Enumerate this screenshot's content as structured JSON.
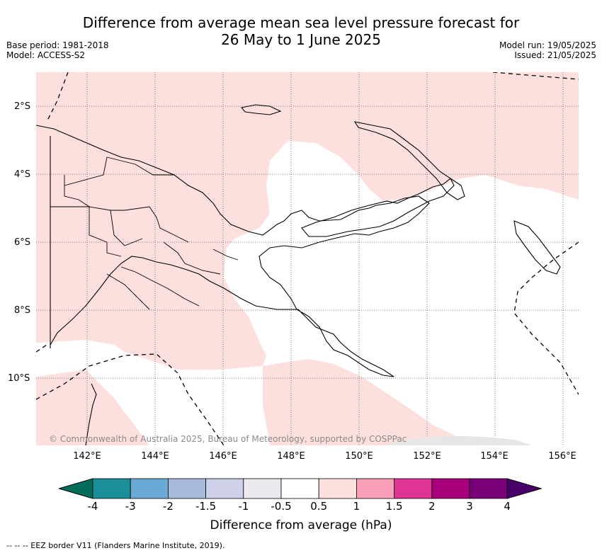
{
  "title_line1": "Difference from average mean sea level pressure forecast for",
  "title_line2": "26 May to 1 June 2025",
  "base_period": "Base period: 1981-2018",
  "model": "Model: ACCESS-S2",
  "model_run": "Model run: 19/05/2025",
  "issued": "Issued: 21/05/2025",
  "copyright": "© Commonwealth of Australia 2025, Bureau of Meteorology, supported by COSPPac",
  "lat_labels": [
    "2°S",
    "4°S",
    "6°S",
    "8°S",
    "10°S"
  ],
  "lon_labels": [
    "142°E",
    "144°E",
    "146°E",
    "148°E",
    "150°E",
    "152°E",
    "154°E",
    "156°E"
  ],
  "colorbar": {
    "ticks": [
      "-4",
      "-3",
      "-2",
      "-1.5",
      "-1",
      "-0.5",
      "0.5",
      "1",
      "1.5",
      "2",
      "3",
      "4"
    ],
    "colors": [
      "#006d5b",
      "#1a8f98",
      "#6aaad4",
      "#a8bbdc",
      "#cdd0e8",
      "#ece9ee",
      "#ffffff",
      "#fde0de",
      "#f9a0b8",
      "#df3495",
      "#a8007a",
      "#7a007a",
      "#4a006a"
    ],
    "label": "Difference from average (hPa)"
  },
  "legend": "-- -- -- EEZ border V11 (Flanders Marine Institute, 2019).",
  "fill_colors": {
    "positive_0_5_to_1": "#fde0de",
    "neutral": "#ffffff"
  }
}
